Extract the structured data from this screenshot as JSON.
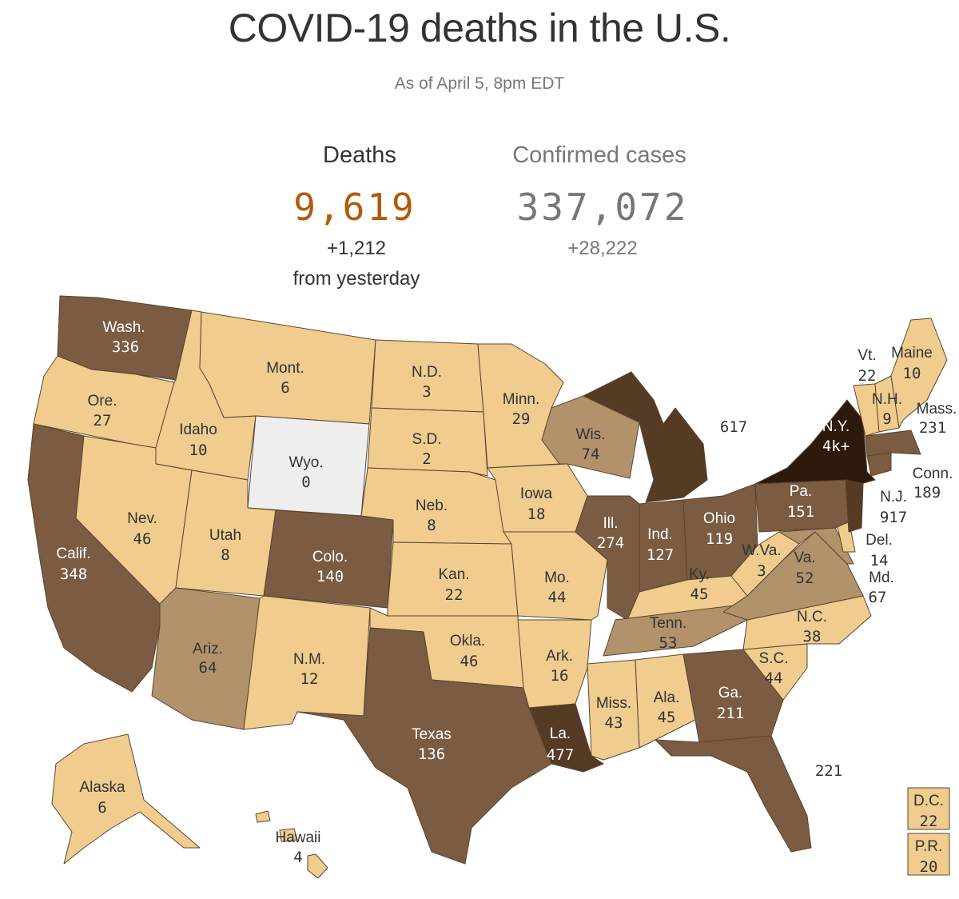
{
  "title": "COVID-19 deaths in the U.S.",
  "subtitle": "As of April 5, 8pm EDT",
  "deaths": {
    "label": "Deaths",
    "value": "9,619",
    "change": "+1,212",
    "change_note": "from yesterday"
  },
  "cases": {
    "label": "Confirmed cases",
    "value": "337,072",
    "change": "+28,222"
  },
  "colors": {
    "c0": "#eeeeee",
    "c1": "#f0cc8e",
    "c2": "#b2926a",
    "c3": "#7b5b41",
    "c4": "#553a24",
    "c5": "#2e1a0c",
    "deaths_number": "#b15a0a",
    "cases_number": "#777777"
  },
  "states": {
    "wa": {
      "name": "Wash.",
      "value": "336"
    },
    "or": {
      "name": "Ore.",
      "value": "27"
    },
    "ca": {
      "name": "Calif.",
      "value": "348"
    },
    "id": {
      "name": "Idaho",
      "value": "10"
    },
    "nv": {
      "name": "Nev.",
      "value": "46"
    },
    "mt": {
      "name": "Mont.",
      "value": "6"
    },
    "wy": {
      "name": "Wyo.",
      "value": "0"
    },
    "ut": {
      "name": "Utah",
      "value": "8"
    },
    "az": {
      "name": "Ariz.",
      "value": "64"
    },
    "co": {
      "name": "Colo.",
      "value": "140"
    },
    "nm": {
      "name": "N.M.",
      "value": "12"
    },
    "nd": {
      "name": "N.D.",
      "value": "3"
    },
    "sd": {
      "name": "S.D.",
      "value": "2"
    },
    "ne": {
      "name": "Neb.",
      "value": "8"
    },
    "ks": {
      "name": "Kan.",
      "value": "22"
    },
    "ok": {
      "name": "Okla.",
      "value": "46"
    },
    "tx": {
      "name": "Texas",
      "value": "136"
    },
    "mn": {
      "name": "Minn.",
      "value": "29"
    },
    "ia": {
      "name": "Iowa",
      "value": "18"
    },
    "mo": {
      "name": "Mo.",
      "value": "44"
    },
    "ar": {
      "name": "Ark.",
      "value": "16"
    },
    "la": {
      "name": "La.",
      "value": "477"
    },
    "wi": {
      "name": "Wis.",
      "value": "74"
    },
    "il": {
      "name": "Ill.",
      "value": "274"
    },
    "mi": {
      "name": "",
      "value": "617"
    },
    "in": {
      "name": "Ind.",
      "value": "127"
    },
    "oh": {
      "name": "Ohio",
      "value": "119"
    },
    "ky": {
      "name": "Ky.",
      "value": "45"
    },
    "tn": {
      "name": "Tenn.",
      "value": "53"
    },
    "ms": {
      "name": "Miss.",
      "value": "43"
    },
    "al": {
      "name": "Ala.",
      "value": "45"
    },
    "ga": {
      "name": "Ga.",
      "value": "211"
    },
    "fl": {
      "name": "",
      "value": "221"
    },
    "sc": {
      "name": "S.C.",
      "value": "44"
    },
    "nc": {
      "name": "N.C.",
      "value": "38"
    },
    "va": {
      "name": "Va.",
      "value": "52"
    },
    "wv": {
      "name": "W.Va.",
      "value": "3"
    },
    "pa": {
      "name": "Pa.",
      "value": "151"
    },
    "ny": {
      "name": "N.Y.",
      "value": "4k+"
    },
    "vt": {
      "name": "Vt.",
      "value": "22"
    },
    "nh": {
      "name": "N.H.",
      "value": "9"
    },
    "me": {
      "name": "Maine",
      "value": "10"
    },
    "ma": {
      "name": "Mass.",
      "value": "231"
    },
    "ct": {
      "name": "Conn.",
      "value": "189"
    },
    "nj": {
      "name": "N.J.",
      "value": "917"
    },
    "de": {
      "name": "Del.",
      "value": "14"
    },
    "md": {
      "name": "Md.",
      "value": "67"
    },
    "ak": {
      "name": "Alaska",
      "value": "6"
    },
    "hi": {
      "name": "Hawaii",
      "value": "4"
    },
    "dc": {
      "name": "D.C.",
      "value": "22"
    },
    "pr": {
      "name": "P.R.",
      "value": "20"
    }
  }
}
